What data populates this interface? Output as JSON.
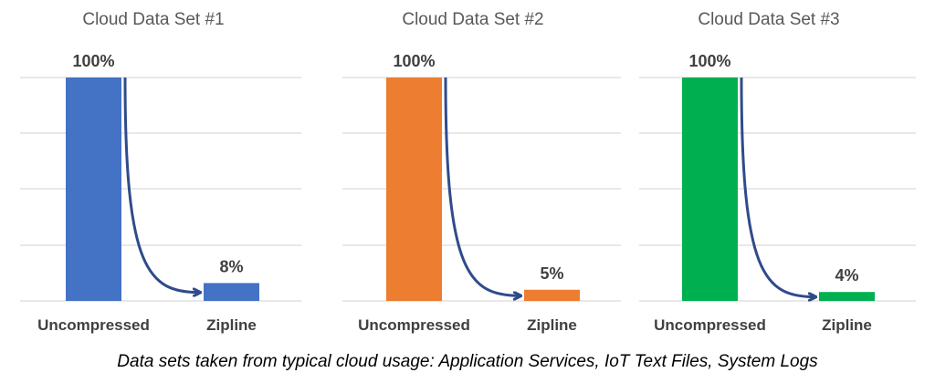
{
  "chart_data": [
    {
      "type": "bar",
      "title": "Cloud Data Set #1",
      "categories": [
        "Uncompressed",
        "Zipline"
      ],
      "values": [
        100,
        8
      ],
      "value_labels": [
        "100%",
        "8%"
      ],
      "ylim": [
        0,
        100
      ],
      "grid": true,
      "color": "#4472C4"
    },
    {
      "type": "bar",
      "title": "Cloud Data Set #2",
      "categories": [
        "Uncompressed",
        "Zipline"
      ],
      "values": [
        100,
        5
      ],
      "value_labels": [
        "100%",
        "5%"
      ],
      "ylim": [
        0,
        100
      ],
      "grid": true,
      "color": "#ED7D31"
    },
    {
      "type": "bar",
      "title": "Cloud Data Set #3",
      "categories": [
        "Uncompressed",
        "Zipline"
      ],
      "values": [
        100,
        4
      ],
      "value_labels": [
        "100%",
        "4%"
      ],
      "ylim": [
        0,
        100
      ],
      "grid": true,
      "color": "#00B050"
    }
  ],
  "arrow_color": "#2F4B8A",
  "gridline_color": "#D9D9D9",
  "footnote": "Data sets taken from typical cloud usage:  Application Services, IoT Text Files, System Logs"
}
